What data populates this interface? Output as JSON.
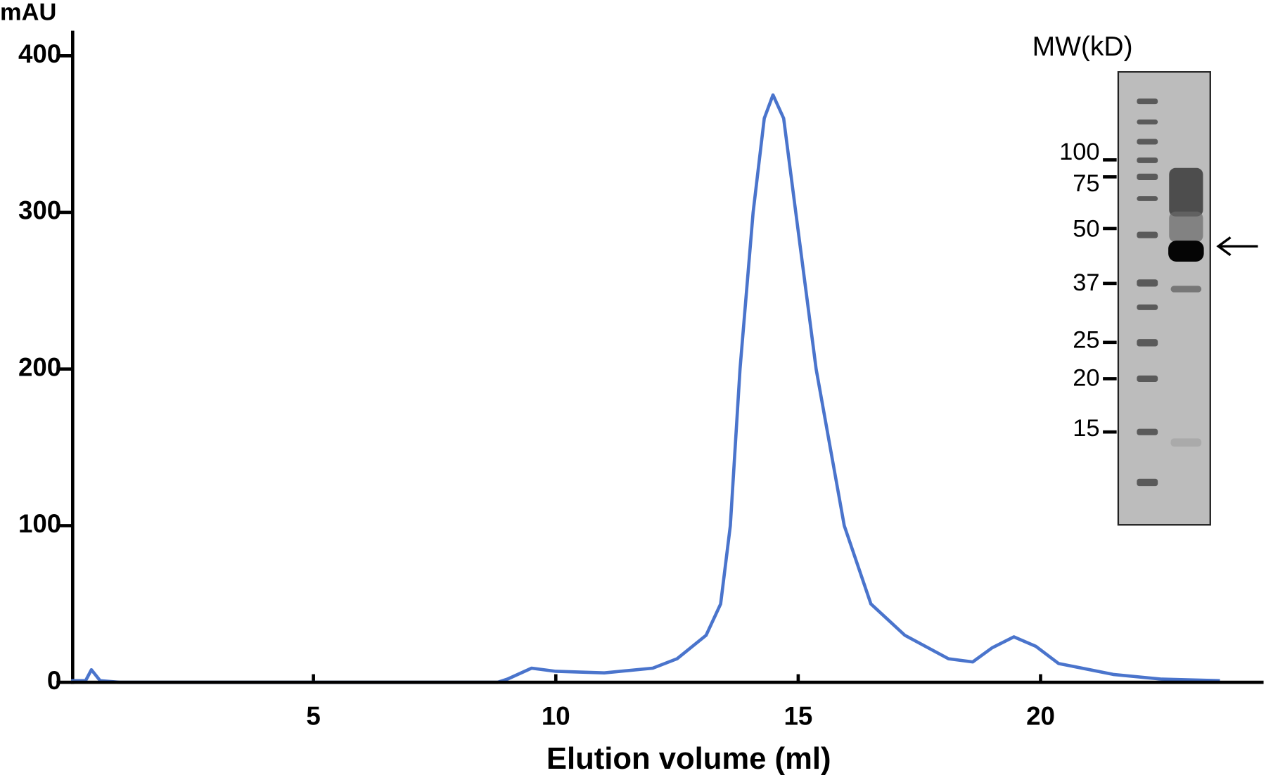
{
  "chart_data": {
    "type": "line",
    "y_label": "mAU",
    "x_label": "Elution volume (ml)",
    "xlim": [
      0,
      24.6
    ],
    "ylim": [
      0,
      416
    ],
    "xticks": [
      5,
      10,
      15,
      20
    ],
    "yticks": [
      0,
      100,
      200,
      300,
      400
    ],
    "series": [
      {
        "name": null,
        "color": "#4a74cc",
        "x": [
          0,
          0.3,
          0.42,
          0.6,
          1,
          5,
          8.8,
          9.0,
          9.5,
          10,
          11,
          12,
          12.5,
          13.1,
          13.4,
          13.6,
          13.8,
          14.07,
          14.3,
          14.48,
          14.7,
          14.95,
          15.37,
          15.95,
          16.5,
          17.2,
          18.1,
          18.6,
          19.0,
          19.45,
          19.9,
          20.37,
          21.5,
          22.5,
          23.7
        ],
        "values": [
          1,
          1,
          8,
          1,
          0,
          0,
          0,
          2,
          9,
          7,
          6,
          9,
          15,
          30,
          50,
          100,
          200,
          300,
          360,
          375,
          360,
          300,
          200,
          100,
          50,
          30,
          15,
          13,
          22,
          29,
          23,
          12,
          5,
          2,
          1
        ]
      }
    ],
    "inset": {
      "title": "MW(kD)",
      "markers": [
        "100",
        "75",
        "50",
        "37",
        "25",
        "20",
        "15"
      ]
    }
  }
}
